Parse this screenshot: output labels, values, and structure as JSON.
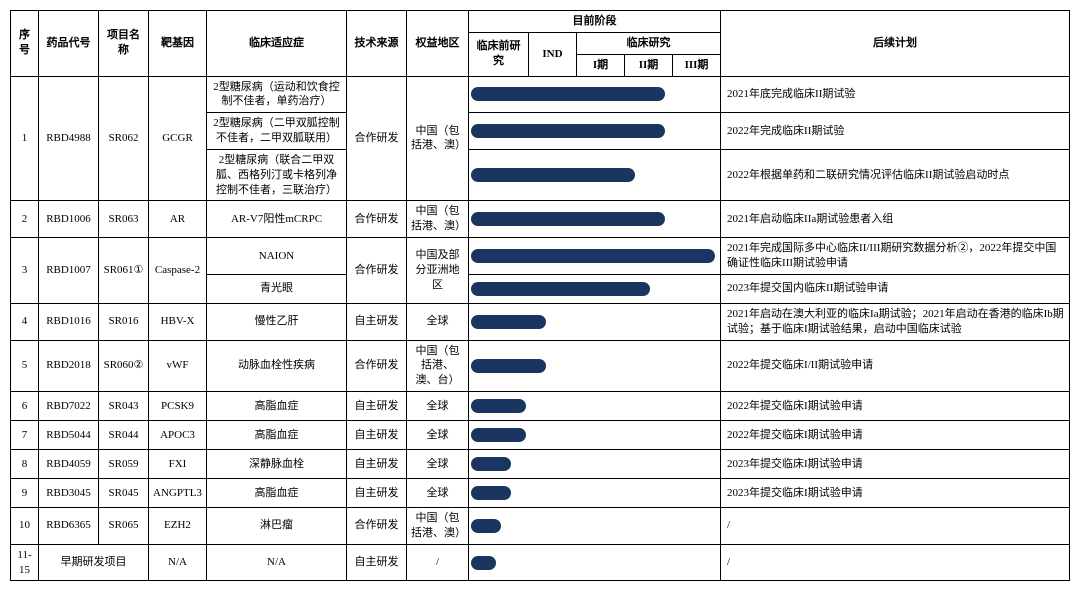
{
  "bar_color": "#1a3560",
  "header": {
    "seq": "序号",
    "drug_code": "药品代号",
    "project_name": "项目名称",
    "target_gene": "靶基因",
    "indication": "临床适应症",
    "tech_source": "技术来源",
    "region": "权益地区",
    "current_phase": "目前阶段",
    "preclinical": "临床前研究",
    "ind": "IND",
    "clinical": "临床研究",
    "phase1": "I期",
    "phase2": "II期",
    "phase3": "III期",
    "plan": "后续计划"
  },
  "rows": [
    {
      "seq": "1",
      "code": "RBD4988",
      "project": "SR062",
      "gene": "GCGR",
      "tech": "合作研发",
      "region": "中国（包括港、澳）",
      "sub": [
        {
          "indication": "2型糖尿病（运动和饮食控制不佳者，单药治疗）",
          "progress": 0.78,
          "plan": "2021年底完成临床II期试验"
        },
        {
          "indication": "2型糖尿病（二甲双胍控制不佳者，二甲双胍联用）",
          "progress": 0.78,
          "plan": "2022年完成临床II期试验"
        },
        {
          "indication": "2型糖尿病（联合二甲双胍、西格列汀或卡格列净控制不佳者，三联治疗）",
          "progress": 0.66,
          "plan": "2022年根据单药和二联研究情况评估临床II期试验启动时点"
        }
      ]
    },
    {
      "seq": "2",
      "code": "RBD1006",
      "project": "SR063",
      "gene": "AR",
      "tech": "合作研发",
      "region": "中国（包括港、澳）",
      "sub": [
        {
          "indication": "AR-V7阳性mCRPC",
          "progress": 0.78,
          "plan": "2021年启动临床IIa期试验患者入组"
        }
      ]
    },
    {
      "seq": "3",
      "code": "RBD1007",
      "project": "SR061①",
      "gene": "Caspase-2",
      "tech": "合作研发",
      "region": "中国及部分亚洲地区",
      "sub": [
        {
          "indication": "NAION",
          "progress": 0.98,
          "plan": "2021年完成国际多中心临床II/III期研究数据分析②，2022年提交中国确证性临床III期试验申请"
        },
        {
          "indication": "青光眼",
          "progress": 0.72,
          "plan": "2023年提交国内临床II期试验申请"
        }
      ]
    },
    {
      "seq": "4",
      "code": "RBD1016",
      "project": "SR016",
      "gene": "HBV-X",
      "tech": "自主研发",
      "region": "全球",
      "sub": [
        {
          "indication": "慢性乙肝",
          "progress": 0.3,
          "plan": "2021年启动在澳大利亚的临床Ia期试验；2021年启动在香港的临床Ib期试验；基于临床I期试验结果，启动中国临床试验"
        }
      ]
    },
    {
      "seq": "5",
      "code": "RBD2018",
      "project": "SR060②",
      "gene": "vWF",
      "tech": "合作研发",
      "region": "中国（包括港、澳、台）",
      "sub": [
        {
          "indication": "动脉血栓性疾病",
          "progress": 0.3,
          "plan": "2022年提交临床I/II期试验申请"
        }
      ]
    },
    {
      "seq": "6",
      "code": "RBD7022",
      "project": "SR043",
      "gene": "PCSK9",
      "tech": "自主研发",
      "region": "全球",
      "sub": [
        {
          "indication": "高脂血症",
          "progress": 0.22,
          "plan": "2022年提交临床I期试验申请"
        }
      ]
    },
    {
      "seq": "7",
      "code": "RBD5044",
      "project": "SR044",
      "gene": "APOC3",
      "tech": "自主研发",
      "region": "全球",
      "sub": [
        {
          "indication": "高脂血症",
          "progress": 0.22,
          "plan": "2022年提交临床I期试验申请"
        }
      ]
    },
    {
      "seq": "8",
      "code": "RBD4059",
      "project": "SR059",
      "gene": "FXI",
      "tech": "自主研发",
      "region": "全球",
      "sub": [
        {
          "indication": "深静脉血栓",
          "progress": 0.16,
          "plan": "2023年提交临床I期试验申请"
        }
      ]
    },
    {
      "seq": "9",
      "code": "RBD3045",
      "project": "SR045",
      "gene": "ANGPTL3",
      "tech": "自主研发",
      "region": "全球",
      "sub": [
        {
          "indication": "高脂血症",
          "progress": 0.16,
          "plan": "2023年提交临床I期试验申请"
        }
      ]
    },
    {
      "seq": "10",
      "code": "RBD6365",
      "project": "SR065",
      "gene": "EZH2",
      "tech": "合作研发",
      "region": "中国（包括港、澳）",
      "sub": [
        {
          "indication": "淋巴瘤",
          "progress": 0.12,
          "plan": "/"
        }
      ]
    },
    {
      "seq": "11-15",
      "code_merged": "早期研发项目",
      "gene": "N/A",
      "tech": "自主研发",
      "region": "/",
      "sub": [
        {
          "indication": "N/A",
          "progress": 0.1,
          "plan": "/"
        }
      ]
    }
  ]
}
